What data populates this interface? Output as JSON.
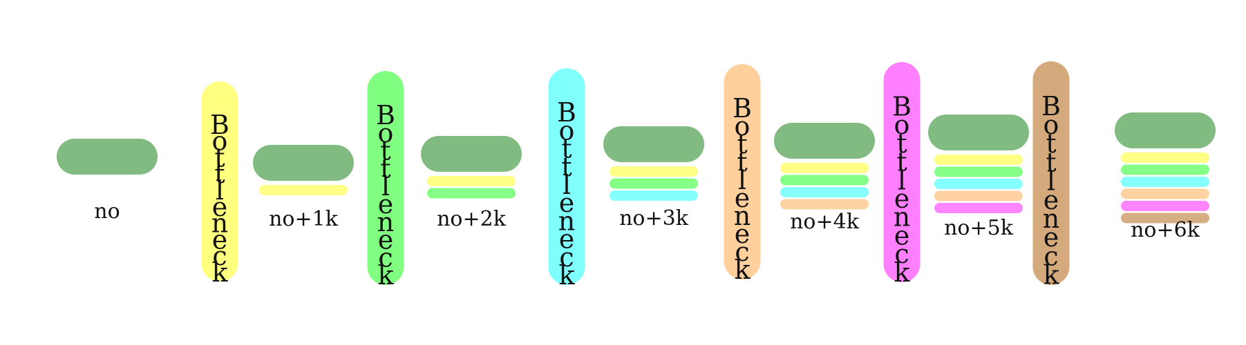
{
  "colors": {
    "base": "#82bb82",
    "yellow": "#ffff80",
    "green": "#80ff80",
    "cyan": "#80ffff",
    "peach": "#ffd09c",
    "magenta": "#ff80ff",
    "tan": "#d4aa7d",
    "ink": "#111111",
    "background": "#ffffff"
  },
  "bottleneck_text": "Bottleneck",
  "bottlenecks": [
    {
      "name": "bottleneck-yellow",
      "color": "yellow"
    },
    {
      "name": "bottleneck-green",
      "color": "green"
    },
    {
      "name": "bottleneck-cyan",
      "color": "cyan"
    },
    {
      "name": "bottleneck-peach",
      "color": "peach"
    },
    {
      "name": "bottleneck-magenta",
      "color": "magenta"
    },
    {
      "name": "bottleneck-tan",
      "color": "tan"
    }
  ],
  "stages": [
    {
      "label": "no",
      "stripes": []
    },
    {
      "label": "no+1k",
      "stripes": [
        "yellow"
      ]
    },
    {
      "label": "no+2k",
      "stripes": [
        "yellow",
        "green"
      ]
    },
    {
      "label": "no+3k",
      "stripes": [
        "yellow",
        "green",
        "cyan"
      ]
    },
    {
      "label": "no+4k",
      "stripes": [
        "yellow",
        "green",
        "cyan",
        "peach"
      ]
    },
    {
      "label": "no+5k",
      "stripes": [
        "yellow",
        "green",
        "cyan",
        "peach",
        "magenta"
      ]
    },
    {
      "label": "no+6k",
      "stripes": [
        "yellow",
        "green",
        "cyan",
        "peach",
        "magenta",
        "tan"
      ]
    }
  ]
}
